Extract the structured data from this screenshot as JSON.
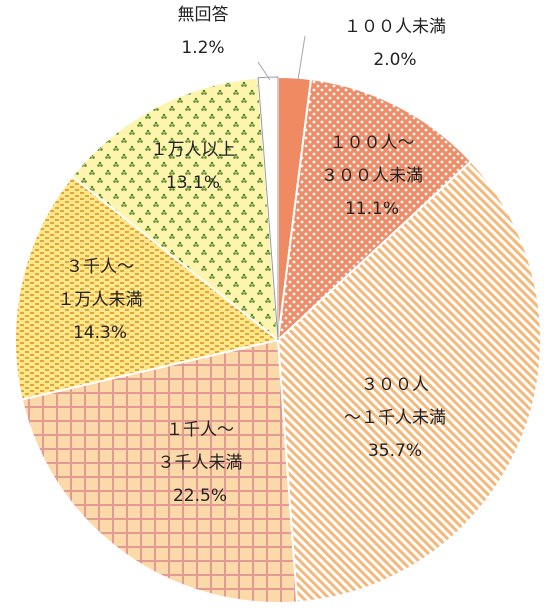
{
  "chart_data": {
    "type": "pie",
    "title": "",
    "start_angle_deg": 0,
    "direction": "clockwise",
    "slices": [
      {
        "label_lines": [
          "１００人未満"
        ],
        "value": 2.0,
        "value_text": "2.0%",
        "color": "#ef8a62",
        "pattern": "solid"
      },
      {
        "label_lines": [
          "１００人～",
          "３００人未満"
        ],
        "value": 11.1,
        "value_text": "11.1%",
        "color": "#f4a582",
        "pattern": "dots"
      },
      {
        "label_lines": [
          "３００人",
          "～１千人未満"
        ],
        "value": 35.7,
        "value_text": "35.7%",
        "color": "#f6c78e",
        "pattern": "diagonal"
      },
      {
        "label_lines": [
          "１千人～",
          "３千人未満"
        ],
        "value": 22.5,
        "value_text": "22.5%",
        "color": "#fcd5a4",
        "pattern": "grid"
      },
      {
        "label_lines": [
          "３千人～",
          "１万人未満"
        ],
        "value": 14.3,
        "value_text": "14.3%",
        "color": "#fde68a",
        "pattern": "dashes"
      },
      {
        "label_lines": [
          "１万人以上"
        ],
        "value": 13.1,
        "value_text": "13.1%",
        "color": "#fdf3a8",
        "pattern": "trefoil"
      },
      {
        "label_lines": [
          "無回答"
        ],
        "value": 1.2,
        "value_text": "1.2%",
        "color": "#ffffff",
        "pattern": "none"
      }
    ]
  }
}
